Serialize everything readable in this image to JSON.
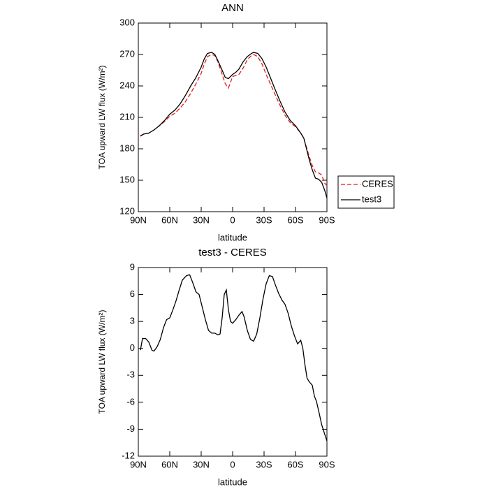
{
  "chart_data": [
    {
      "type": "line",
      "title": "ANN",
      "xlabel": "latitude",
      "ylabel": "TOA upward LW flux (W/m²)",
      "x": [
        88,
        85,
        80,
        75,
        70,
        65,
        60,
        55,
        50,
        45,
        40,
        35,
        30,
        27,
        24,
        20,
        17,
        14,
        10,
        7,
        4,
        0,
        -3,
        -6,
        -10,
        -14,
        -18,
        -20,
        -24,
        -28,
        -32,
        -36,
        -40,
        -45,
        -50,
        -55,
        -60,
        -65,
        -68,
        -70,
        -73,
        -76,
        -79,
        -82,
        -85,
        -88,
        -90
      ],
      "series": [
        {
          "name": "CERES",
          "color": "#e41a1c",
          "dash": true,
          "values": [
            192.5,
            194,
            195,
            198,
            202,
            206,
            211,
            214,
            219,
            225,
            233,
            242,
            252,
            261,
            268,
            270,
            269,
            263,
            251,
            242,
            238,
            249,
            250,
            251,
            257,
            265,
            269,
            270,
            268,
            261,
            251,
            242,
            233,
            222,
            212,
            205,
            201,
            195,
            190,
            183,
            173,
            164,
            158,
            157,
            155,
            147,
            145
          ]
        },
        {
          "name": "test3",
          "color": "#000000",
          "dash": false,
          "values": [
            192,
            194,
            195,
            198,
            202,
            207,
            213,
            217,
            223,
            231,
            240,
            248,
            258,
            266,
            271,
            272,
            270,
            264,
            255,
            248,
            247,
            251,
            253,
            256,
            263,
            268,
            271,
            272,
            271,
            266,
            258,
            248,
            238,
            226,
            215,
            207,
            202,
            195,
            190,
            182,
            170,
            160,
            152,
            151,
            148,
            140,
            133
          ]
        }
      ],
      "xlim": [
        90,
        -90
      ],
      "xticks": [
        {
          "value": 90,
          "label": "90N"
        },
        {
          "value": 60,
          "label": "60N"
        },
        {
          "value": 30,
          "label": "30N"
        },
        0,
        {
          "value": -30,
          "label": "30S"
        },
        {
          "value": -60,
          "label": "60S"
        },
        {
          "value": -90,
          "label": "90S"
        }
      ],
      "ylim": [
        120,
        300
      ],
      "yticks": [
        120,
        150,
        180,
        210,
        240,
        270,
        300
      ],
      "legend": "right"
    },
    {
      "type": "line",
      "title": "test3 - CERES",
      "xlabel": "latitude",
      "ylabel": "TOA upward LW flux (W/m²)",
      "x": [
        88,
        86,
        83,
        80,
        77,
        75,
        72,
        69,
        66,
        63,
        60,
        57,
        54,
        51,
        48,
        44,
        41,
        38,
        35,
        32,
        29,
        26,
        23,
        20,
        17,
        14,
        12,
        10,
        8,
        6,
        4,
        2,
        0,
        -3,
        -6,
        -9,
        -11,
        -14,
        -17,
        -20,
        -23,
        -26,
        -29,
        -32,
        -35,
        -38,
        -41,
        -44,
        -47,
        -50,
        -53,
        -56,
        -59,
        -62,
        -65,
        -67,
        -69,
        -71,
        -73,
        -76,
        -78,
        -80,
        -82,
        -85,
        -88,
        -90
      ],
      "series": [
        {
          "color": "#000000",
          "dash": false,
          "values": [
            -0.2,
            1.1,
            1.1,
            0.7,
            -0.2,
            -0.3,
            0.2,
            1.0,
            2.3,
            3.2,
            3.4,
            4.3,
            5.3,
            6.5,
            7.6,
            8.1,
            8.2,
            7.3,
            6.3,
            6.0,
            4.6,
            3.2,
            2.0,
            1.7,
            1.7,
            1.5,
            1.6,
            3.4,
            6.0,
            6.5,
            4.3,
            3.0,
            2.8,
            3.2,
            3.7,
            4.1,
            3.5,
            2.0,
            1.0,
            0.8,
            1.6,
            3.4,
            5.5,
            7.2,
            8.1,
            8.0,
            7.0,
            6.1,
            5.4,
            4.9,
            3.9,
            2.5,
            1.4,
            0.5,
            0.9,
            0,
            -1.8,
            -3.3,
            -3.7,
            -4.1,
            -5.3,
            -5.9,
            -6.9,
            -8.5,
            -9.6,
            -10.3
          ]
        }
      ],
      "xlim": [
        90,
        -90
      ],
      "xticks": [
        {
          "value": 90,
          "label": "90N"
        },
        {
          "value": 60,
          "label": "60N"
        },
        {
          "value": 30,
          "label": "30N"
        },
        0,
        {
          "value": -30,
          "label": "30S"
        },
        {
          "value": -60,
          "label": "60S"
        },
        {
          "value": -90,
          "label": "90S"
        }
      ],
      "ylim": [
        -12,
        9
      ],
      "yticks": [
        -12,
        -9,
        -6,
        -3,
        0,
        3,
        6,
        9
      ]
    }
  ]
}
